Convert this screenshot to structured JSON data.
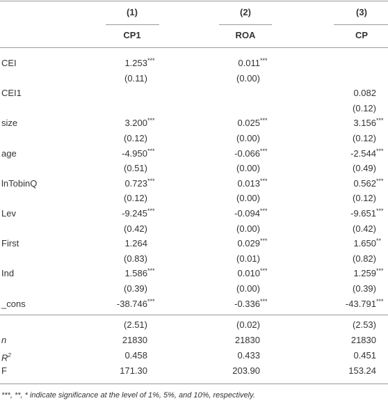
{
  "header": {
    "columns": [
      "(1)",
      "(2)",
      "(3)"
    ],
    "names": [
      "CP1",
      "ROA",
      "CP"
    ]
  },
  "rows": [
    {
      "label": "CEI",
      "cells": [
        {
          "v": "1.253",
          "s": "***"
        },
        {
          "v": "0.011",
          "s": "***"
        },
        null
      ]
    },
    {
      "label": null,
      "cells": [
        {
          "v": "(0.11)"
        },
        {
          "v": "(0.00)"
        },
        null
      ]
    },
    {
      "label": "CEI1",
      "cells": [
        null,
        null,
        {
          "v": "0.082"
        }
      ]
    },
    {
      "label": null,
      "cells": [
        null,
        null,
        {
          "v": "(0.12)"
        }
      ]
    },
    {
      "label": "size",
      "cells": [
        {
          "v": "3.200",
          "s": "***"
        },
        {
          "v": "0.025",
          "s": "***"
        },
        {
          "v": "3.156",
          "s": "***"
        }
      ]
    },
    {
      "label": null,
      "cells": [
        {
          "v": "(0.12)"
        },
        {
          "v": "(0.00)"
        },
        {
          "v": "(0.12)"
        }
      ]
    },
    {
      "label": "age",
      "cells": [
        {
          "v": "-4.950",
          "s": "***"
        },
        {
          "v": "-0.066",
          "s": "***"
        },
        {
          "v": "-2.544",
          "s": "***"
        }
      ]
    },
    {
      "label": null,
      "cells": [
        {
          "v": "(0.51)"
        },
        {
          "v": "(0.00)"
        },
        {
          "v": "(0.49)"
        }
      ]
    },
    {
      "label": "lnTobinQ",
      "cells": [
        {
          "v": "0.723",
          "s": "***"
        },
        {
          "v": "0.013",
          "s": "***"
        },
        {
          "v": "0.562",
          "s": "***"
        }
      ]
    },
    {
      "label": null,
      "cells": [
        {
          "v": "(0.12)"
        },
        {
          "v": "(0.00)"
        },
        {
          "v": "(0.12)"
        }
      ]
    },
    {
      "label": "Lev",
      "cells": [
        {
          "v": "-9.245",
          "s": "***"
        },
        {
          "v": "-0.094",
          "s": "***"
        },
        {
          "v": "-9.651",
          "s": "***"
        }
      ]
    },
    {
      "label": null,
      "cells": [
        {
          "v": "(0.42)"
        },
        {
          "v": "(0.00)"
        },
        {
          "v": "(0.42)"
        }
      ]
    },
    {
      "label": "First",
      "cells": [
        {
          "v": "1.264"
        },
        {
          "v": "0.029",
          "s": "***"
        },
        {
          "v": "1.650",
          "s": "**"
        }
      ]
    },
    {
      "label": null,
      "cells": [
        {
          "v": "(0.83)"
        },
        {
          "v": "(0.01)"
        },
        {
          "v": "(0.82)"
        }
      ]
    },
    {
      "label": "Ind",
      "cells": [
        {
          "v": "1.586",
          "s": "***"
        },
        {
          "v": "0.010",
          "s": "***"
        },
        {
          "v": "1.259",
          "s": "***"
        }
      ]
    },
    {
      "label": null,
      "cells": [
        {
          "v": "(0.39)"
        },
        {
          "v": "(0.00)"
        },
        {
          "v": "(0.39)"
        }
      ]
    },
    {
      "label": "_cons",
      "cells": [
        {
          "v": "-38.746",
          "s": "***"
        },
        {
          "v": "-0.336",
          "s": "***"
        },
        {
          "v": "-43.791",
          "s": "***"
        }
      ]
    }
  ],
  "stats": [
    {
      "label": null,
      "cells": [
        {
          "v": "(2.51)"
        },
        {
          "v": "(0.02)"
        },
        {
          "v": "(2.53)"
        }
      ]
    },
    {
      "label": {
        "text": "n",
        "italic": true
      },
      "cells": [
        {
          "v": "21830"
        },
        {
          "v": "21830"
        },
        {
          "v": "21830"
        }
      ]
    },
    {
      "label": {
        "text": "R",
        "sup": "2",
        "italic": true
      },
      "cells": [
        {
          "v": "0.458"
        },
        {
          "v": "0.433"
        },
        {
          "v": "0.451"
        }
      ]
    },
    {
      "label": {
        "text": "F"
      },
      "cells": [
        {
          "v": "171.30"
        },
        {
          "v": "203.90"
        },
        {
          "v": "153.24"
        }
      ]
    }
  ],
  "footnote": "***, **, * indicate significance at the level of 1%, 5%, and 10%, respectively."
}
